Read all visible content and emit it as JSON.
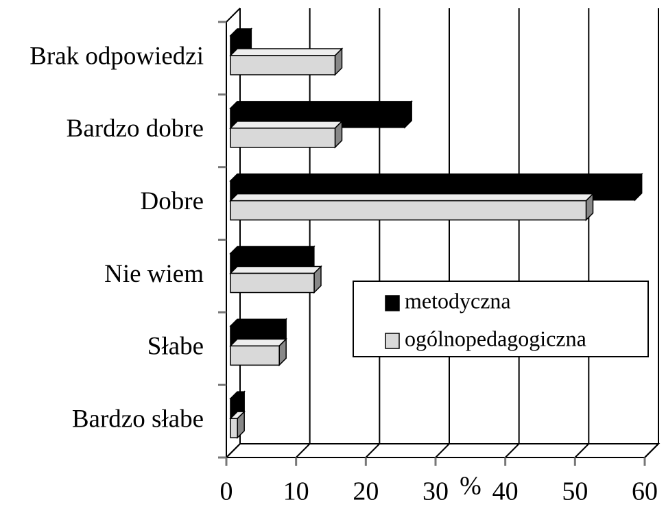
{
  "chart_data": {
    "type": "bar3d_h",
    "categories": [
      "Brak odpowiedzi",
      "Bardzo dobre",
      "Dobre",
      "Nie wiem",
      "Słabe",
      "Bardzo słabe"
    ],
    "series": [
      {
        "name": "metodyczna",
        "color": "#000000",
        "values": [
          2,
          25,
          58,
          11,
          7,
          1
        ]
      },
      {
        "name": "ogólnopedagogiczna",
        "color": "#d9d9d9",
        "values": [
          15,
          15,
          51,
          12,
          7,
          1
        ]
      }
    ],
    "xlabel": "%",
    "xlim": [
      0,
      60
    ],
    "xticks": [
      0,
      10,
      20,
      30,
      40,
      50,
      60
    ],
    "grid": true,
    "legend": "lower right"
  }
}
